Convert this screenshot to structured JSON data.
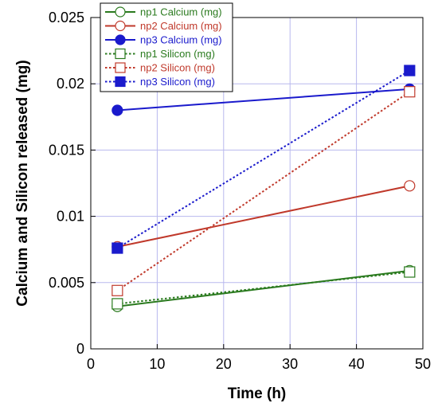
{
  "chart_data": {
    "type": "line",
    "title": "",
    "xlabel": "Time (h)",
    "ylabel": "Calcium and Silicon released (mg)",
    "xlim": [
      0,
      50
    ],
    "ylim": [
      0,
      0.025
    ],
    "x_ticks": [
      "0",
      "10",
      "20",
      "30",
      "40",
      "50"
    ],
    "y_ticks": [
      "0",
      "0.005",
      "0.01",
      "0.015",
      "0.02",
      "0.025"
    ],
    "grid": true,
    "legend_position": "top-left",
    "series": [
      {
        "name": "np1 Calcium (mg)",
        "x": [
          4,
          48
        ],
        "y": [
          0.0032,
          0.0059
        ],
        "color": "#2a7a1e",
        "dash": "solid",
        "marker": "circle",
        "filled": false
      },
      {
        "name": "np2 Calcium (mg)",
        "x": [
          4,
          48
        ],
        "y": [
          0.0077,
          0.0123
        ],
        "color": "#c0392b",
        "dash": "solid",
        "marker": "circle",
        "filled": false
      },
      {
        "name": "np3 Calcium (mg)",
        "x": [
          4,
          48
        ],
        "y": [
          0.018,
          0.0196
        ],
        "color": "#1a1acc",
        "dash": "solid",
        "marker": "circle",
        "filled": true
      },
      {
        "name": "np1 Silicon (mg)",
        "x": [
          4,
          48
        ],
        "y": [
          0.0034,
          0.0058
        ],
        "color": "#2a7a1e",
        "dash": "dotted",
        "marker": "square",
        "filled": false
      },
      {
        "name": "np2 Silicon (mg)",
        "x": [
          4,
          48
        ],
        "y": [
          0.0044,
          0.0194
        ],
        "color": "#c0392b",
        "dash": "dotted",
        "marker": "square",
        "filled": false
      },
      {
        "name": "np3 Silicon (mg)",
        "x": [
          4,
          48
        ],
        "y": [
          0.0076,
          0.021
        ],
        "color": "#1a1acc",
        "dash": "dotted",
        "marker": "square",
        "filled": true
      }
    ]
  }
}
